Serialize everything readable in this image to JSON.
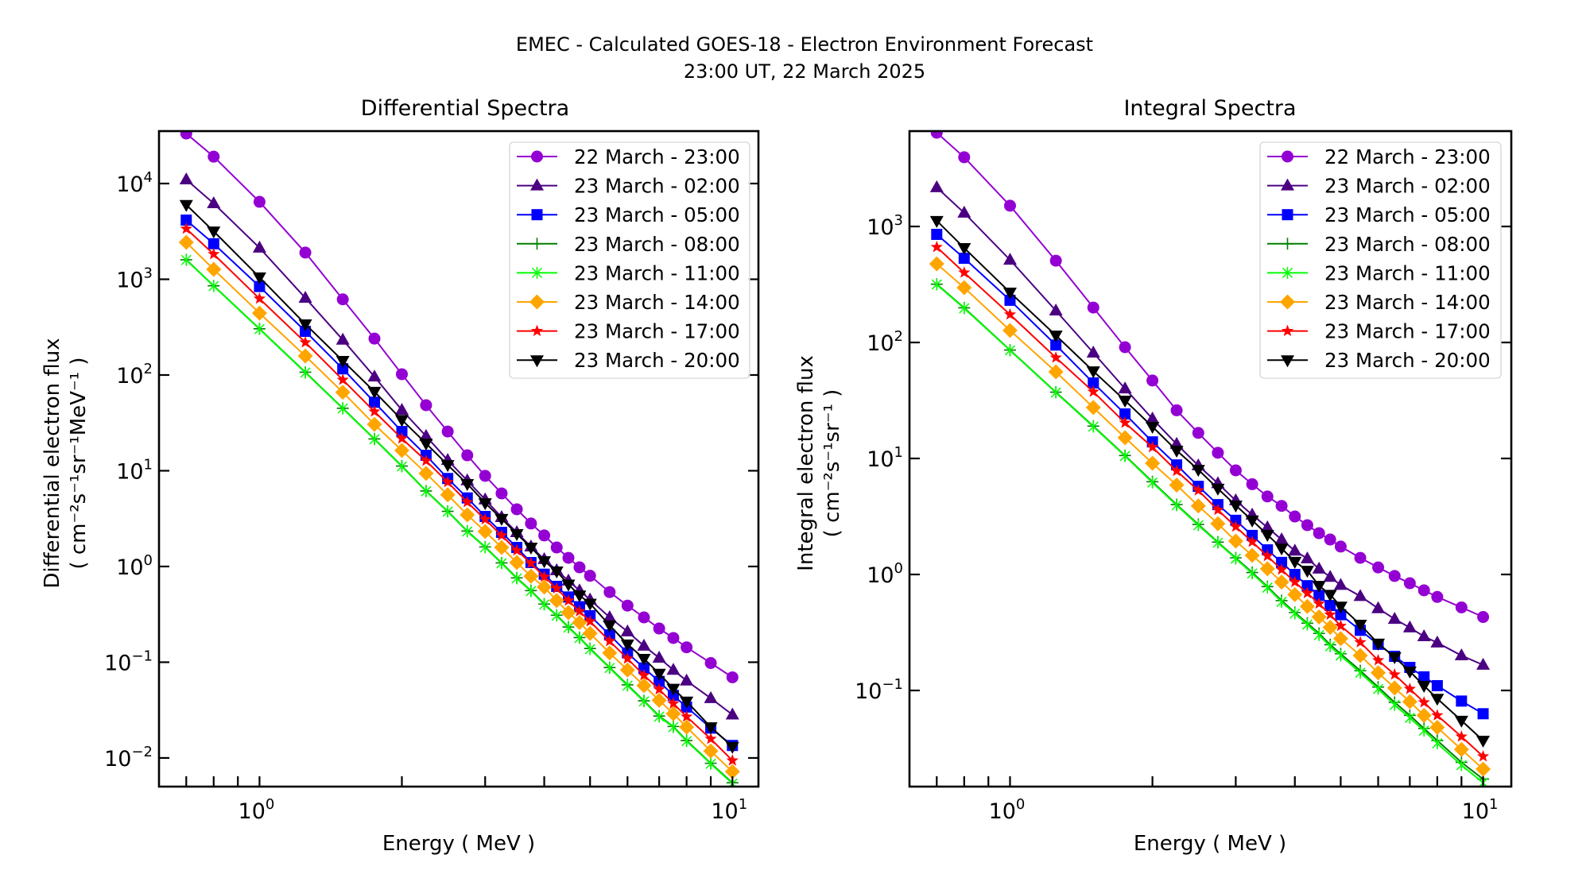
{
  "figure": {
    "suptitle_line1": "EMEC - Calculated GOES-18 - Electron Environment Forecast",
    "suptitle_line2": "23:00 UT, 22 March 2025"
  },
  "series_styles": [
    {
      "name": "22 March - 23:00",
      "color": "#9400d3",
      "marker": "circle"
    },
    {
      "name": "23 March - 02:00",
      "color": "#4b0082",
      "marker": "triangle-up"
    },
    {
      "name": "23 March - 05:00",
      "color": "#0000ff",
      "marker": "square"
    },
    {
      "name": "23 March - 08:00",
      "color": "#008000",
      "marker": "plus"
    },
    {
      "name": "23 March - 11:00",
      "color": "#00ff00",
      "marker": "x"
    },
    {
      "name": "23 March - 14:00",
      "color": "#ffa500",
      "marker": "diamond"
    },
    {
      "name": "23 March - 17:00",
      "color": "#ff0000",
      "marker": "star"
    },
    {
      "name": "23 March - 20:00",
      "color": "#000000",
      "marker": "triangle-down"
    }
  ],
  "chart_data": [
    {
      "type": "line",
      "title": "Differential Spectra",
      "xlabel": "Energy ( MeV )",
      "ylabel_line1": "Differential electron flux",
      "ylabel_line2": "( cm⁻²s⁻¹sr⁻¹MeV⁻¹ )",
      "xscale": "log",
      "yscale": "log",
      "xlim": [
        0.613,
        11.35
      ],
      "ylim": [
        0.00502,
        35300
      ],
      "xticks": [
        {
          "value": 1,
          "label": "10",
          "exp": "0"
        },
        {
          "value": 10,
          "label": "10",
          "exp": "1"
        }
      ],
      "yticks": [
        {
          "value": 0.01,
          "label": "10",
          "exp": "−2"
        },
        {
          "value": 0.1,
          "label": "10",
          "exp": "−1"
        },
        {
          "value": 1,
          "label": "10",
          "exp": "0"
        },
        {
          "value": 10,
          "label": "10",
          "exp": "1"
        },
        {
          "value": 100,
          "label": "10",
          "exp": "2"
        },
        {
          "value": 1000,
          "label": "10",
          "exp": "3"
        },
        {
          "value": 10000,
          "label": "10",
          "exp": "4"
        }
      ],
      "legend": "top-right",
      "grid": false,
      "x": [
        0.7,
        0.8,
        1.0,
        1.25,
        1.5,
        1.75,
        2.0,
        2.25,
        2.5,
        2.75,
        3.0,
        3.25,
        3.5,
        3.75,
        4.0,
        4.25,
        4.5,
        4.75,
        5.0,
        5.5,
        6.0,
        6.5,
        7.0,
        7.5,
        8.0,
        9.0,
        10.0
      ],
      "series": [
        {
          "name": "22 March - 23:00",
          "values": [
            33300,
            19100,
            6440,
            1900,
            617,
            240,
            102,
            48.4,
            25.7,
            14.5,
            8.84,
            5.8,
            3.96,
            2.81,
            2.11,
            1.58,
            1.23,
            0.98,
            0.8,
            0.54,
            0.39,
            0.294,
            0.225,
            0.179,
            0.143,
            0.098,
            0.0695
          ]
        },
        {
          "name": "23 March - 02:00",
          "values": [
            11000,
            6200,
            2130,
            638,
            233,
            96,
            43,
            23,
            12.9,
            7.9,
            5.0,
            3.27,
            2.27,
            1.61,
            1.19,
            0.91,
            0.71,
            0.56,
            0.45,
            0.294,
            0.209,
            0.148,
            0.111,
            0.083,
            0.064,
            0.042,
            0.0283
          ]
        },
        {
          "name": "23 March - 05:00",
          "values": [
            4150,
            2350,
            840,
            286,
            116,
            52,
            25.7,
            14.5,
            8.3,
            5.2,
            3.33,
            2.27,
            1.58,
            1.1,
            0.83,
            0.62,
            0.48,
            0.38,
            0.306,
            0.193,
            0.125,
            0.087,
            0.063,
            0.045,
            0.034,
            0.0205,
            0.0135
          ]
        },
        {
          "name": "23 March - 08:00",
          "values": [
            1600,
            855,
            304,
            107,
            45,
            21.5,
            11.2,
            6.15,
            3.77,
            2.34,
            1.6,
            1.09,
            0.76,
            0.56,
            0.405,
            0.31,
            0.233,
            0.181,
            0.139,
            0.088,
            0.058,
            0.0395,
            0.0274,
            0.0213,
            0.0152,
            0.0088,
            0.0055
          ]
        },
        {
          "name": "23 March - 11:00",
          "values": [
            1590,
            850,
            302,
            106,
            44.7,
            21.3,
            11.1,
            6.1,
            3.74,
            2.32,
            1.58,
            1.08,
            0.75,
            0.553,
            0.4,
            0.306,
            0.23,
            0.179,
            0.137,
            0.087,
            0.057,
            0.039,
            0.027,
            0.021,
            0.015,
            0.0087,
            0.0054
          ]
        },
        {
          "name": "23 March - 14:00",
          "values": [
            2430,
            1270,
            443,
            158,
            66,
            30.5,
            16.3,
            9.4,
            5.6,
            3.46,
            2.32,
            1.58,
            1.1,
            0.79,
            0.61,
            0.44,
            0.33,
            0.26,
            0.2,
            0.125,
            0.083,
            0.057,
            0.04,
            0.029,
            0.021,
            0.0118,
            0.0072
          ]
        },
        {
          "name": "23 March - 17:00",
          "values": [
            3370,
            1830,
            627,
            219,
            89,
            41.5,
            21.7,
            12.7,
            7.6,
            4.7,
            3.1,
            2.11,
            1.47,
            1.08,
            0.78,
            0.59,
            0.44,
            0.34,
            0.267,
            0.166,
            0.109,
            0.073,
            0.052,
            0.037,
            0.027,
            0.0158,
            0.0094
          ]
        },
        {
          "name": "23 March - 20:00",
          "values": [
            6000,
            3170,
            1050,
            340,
            141,
            67,
            34,
            19.3,
            11.5,
            7.3,
            4.6,
            3.15,
            2.19,
            1.58,
            1.14,
            0.89,
            0.65,
            0.5,
            0.41,
            0.243,
            0.154,
            0.109,
            0.076,
            0.053,
            0.039,
            0.021,
            0.0131
          ]
        }
      ]
    },
    {
      "type": "line",
      "title": "Integral Spectra",
      "xlabel": "Energy ( MeV )",
      "ylabel_line1": "Integral electron flux",
      "ylabel_line2": "( cm⁻²s⁻¹sr⁻¹ )",
      "xscale": "log",
      "yscale": "log",
      "xlim": [
        0.613,
        11.47
      ],
      "ylim": [
        0.01483,
        6640
      ],
      "xticks": [
        {
          "value": 1,
          "label": "10",
          "exp": "0"
        },
        {
          "value": 10,
          "label": "10",
          "exp": "1"
        }
      ],
      "yticks": [
        {
          "value": 0.1,
          "label": "10",
          "exp": "−1"
        },
        {
          "value": 1,
          "label": "10",
          "exp": "0"
        },
        {
          "value": 10,
          "label": "10",
          "exp": "1"
        },
        {
          "value": 100,
          "label": "10",
          "exp": "2"
        },
        {
          "value": 1000,
          "label": "10",
          "exp": "3"
        }
      ],
      "legend": "top-right",
      "grid": false,
      "x": [
        0.7,
        0.8,
        1.0,
        1.25,
        1.5,
        1.75,
        2.0,
        2.25,
        2.5,
        2.75,
        3.0,
        3.25,
        3.5,
        3.75,
        4.0,
        4.25,
        4.5,
        4.75,
        5.0,
        5.5,
        6.0,
        6.5,
        7.0,
        7.5,
        8.0,
        9.0,
        10.0
      ],
      "series": [
        {
          "name": "22 March - 23:00",
          "values": [
            6430,
            3950,
            1510,
            507,
            200,
            91,
            47,
            26,
            16.6,
            11.2,
            7.9,
            6.0,
            4.7,
            3.9,
            3.16,
            2.66,
            2.27,
            2.0,
            1.74,
            1.39,
            1.15,
            0.97,
            0.84,
            0.73,
            0.64,
            0.52,
            0.43
          ]
        },
        {
          "name": "23 March - 02:00",
          "values": [
            2170,
            1310,
            515,
            188,
            81.5,
            40,
            22,
            13.3,
            8.7,
            6.1,
            4.34,
            3.27,
            2.54,
            2.0,
            1.6,
            1.37,
            1.12,
            0.95,
            0.81,
            0.65,
            0.51,
            0.413,
            0.348,
            0.292,
            0.258,
            0.2,
            0.166
          ]
        },
        {
          "name": "23 March - 05:00",
          "values": [
            855,
            532,
            231,
            95,
            44.8,
            24.2,
            13.9,
            8.8,
            5.75,
            4.0,
            2.93,
            2.17,
            1.63,
            1.27,
            1.0,
            0.8,
            0.66,
            0.54,
            0.45,
            0.33,
            0.25,
            0.197,
            0.158,
            0.131,
            0.11,
            0.081,
            0.063
          ]
        },
        {
          "name": "23 March - 08:00",
          "values": [
            318,
            199,
            86,
            37.3,
            19,
            10.6,
            6.3,
            4.0,
            2.7,
            1.9,
            1.39,
            1.04,
            0.785,
            0.595,
            0.47,
            0.38,
            0.31,
            0.248,
            0.207,
            0.148,
            0.107,
            0.079,
            0.061,
            0.047,
            0.037,
            0.024,
            0.0172
          ]
        },
        {
          "name": "23 March - 11:00",
          "values": [
            316,
            197,
            85.5,
            37,
            18.8,
            10.5,
            6.2,
            3.95,
            2.66,
            1.88,
            1.37,
            1.02,
            0.77,
            0.58,
            0.46,
            0.37,
            0.3,
            0.24,
            0.2,
            0.142,
            0.103,
            0.075,
            0.058,
            0.045,
            0.035,
            0.0227,
            0.016
          ]
        },
        {
          "name": "23 March - 14:00",
          "values": [
            476,
            297,
            127,
            55.8,
            27.5,
            15.1,
            9.1,
            5.9,
            3.9,
            2.74,
            1.94,
            1.46,
            1.12,
            0.86,
            0.67,
            0.53,
            0.43,
            0.35,
            0.28,
            0.2,
            0.142,
            0.105,
            0.08,
            0.061,
            0.048,
            0.031,
            0.021
          ]
        },
        {
          "name": "23 March - 17:00",
          "values": [
            664,
            400,
            174,
            74,
            37.6,
            20.3,
            12.5,
            7.8,
            5.3,
            3.6,
            2.58,
            1.91,
            1.44,
            1.1,
            0.86,
            0.69,
            0.56,
            0.45,
            0.36,
            0.26,
            0.182,
            0.137,
            0.103,
            0.079,
            0.061,
            0.04,
            0.027
          ]
        },
        {
          "name": "23 March - 20:00",
          "values": [
            1120,
            653,
            270,
            115,
            56.6,
            31.6,
            18.8,
            11.7,
            8.0,
            5.5,
            3.94,
            2.93,
            2.2,
            1.68,
            1.29,
            1.08,
            0.8,
            0.67,
            0.53,
            0.37,
            0.254,
            0.194,
            0.146,
            0.11,
            0.085,
            0.055,
            0.037
          ]
        }
      ]
    }
  ]
}
